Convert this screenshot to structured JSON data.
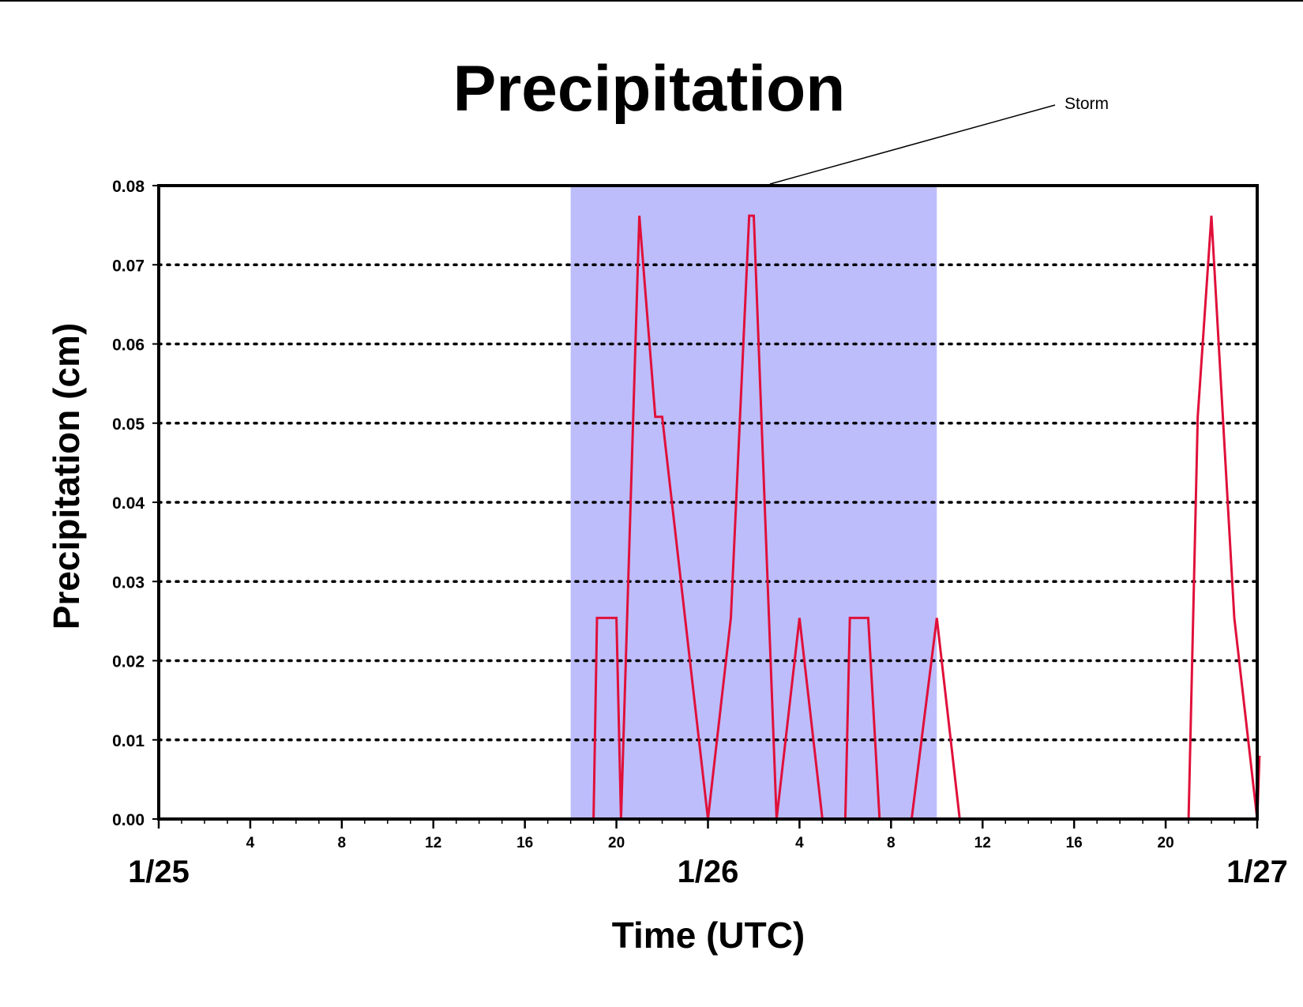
{
  "chart_data": {
    "type": "line",
    "title": "Precipitation",
    "xlabel": "Time (UTC)",
    "ylabel": "Precipitation (cm)",
    "x_unit": "hours from 1/25 00 UTC",
    "xlim": [
      0,
      48
    ],
    "ylim": [
      0,
      0.08
    ],
    "y_ticks": [
      "0.00",
      "0.01",
      "0.02",
      "0.03",
      "0.04",
      "0.05",
      "0.06",
      "0.07",
      "0.08"
    ],
    "x_hour_ticks": [
      {
        "x": 4,
        "label": "4"
      },
      {
        "x": 8,
        "label": "8"
      },
      {
        "x": 12,
        "label": "12"
      },
      {
        "x": 16,
        "label": "16"
      },
      {
        "x": 20,
        "label": "20"
      },
      {
        "x": 28,
        "label": "4"
      },
      {
        "x": 32,
        "label": "8"
      },
      {
        "x": 36,
        "label": "12"
      },
      {
        "x": 40,
        "label": "16"
      },
      {
        "x": 44,
        "label": "20"
      }
    ],
    "x_day_labels": [
      {
        "x": 0,
        "label": "1/25"
      },
      {
        "x": 24,
        "label": "1/26"
      },
      {
        "x": 48,
        "label": "1/27"
      }
    ],
    "grid": "horizontal dotted",
    "line_color": "#e0103a",
    "storm_shading": {
      "label": "Storm",
      "x_start": 18,
      "x_end": 34,
      "color": "#bdbdfc"
    },
    "series": [
      {
        "points": [
          [
            0,
            0
          ],
          [
            19,
            0
          ],
          [
            19.15,
            0.0254
          ],
          [
            20,
            0.0254
          ],
          [
            20.2,
            0
          ],
          [
            21,
            0.0762
          ],
          [
            21.7,
            0.0508
          ],
          [
            22,
            0.0508
          ],
          [
            24,
            0
          ],
          [
            25,
            0.0254
          ],
          [
            25.8,
            0.0762
          ],
          [
            26,
            0.0762
          ],
          [
            27,
            0
          ],
          [
            28,
            0.0254
          ],
          [
            29,
            0
          ],
          [
            30,
            0
          ],
          [
            30.2,
            0.0254
          ],
          [
            31,
            0.0254
          ],
          [
            31.5,
            0
          ],
          [
            32.9,
            0
          ],
          [
            34,
            0.0254
          ],
          [
            35,
            0
          ],
          [
            45,
            0
          ],
          [
            45.4,
            0.0508
          ],
          [
            46,
            0.0762
          ],
          [
            47,
            0.0254
          ],
          [
            48,
            0
          ],
          [
            48.1,
            0.008
          ]
        ]
      }
    ]
  }
}
